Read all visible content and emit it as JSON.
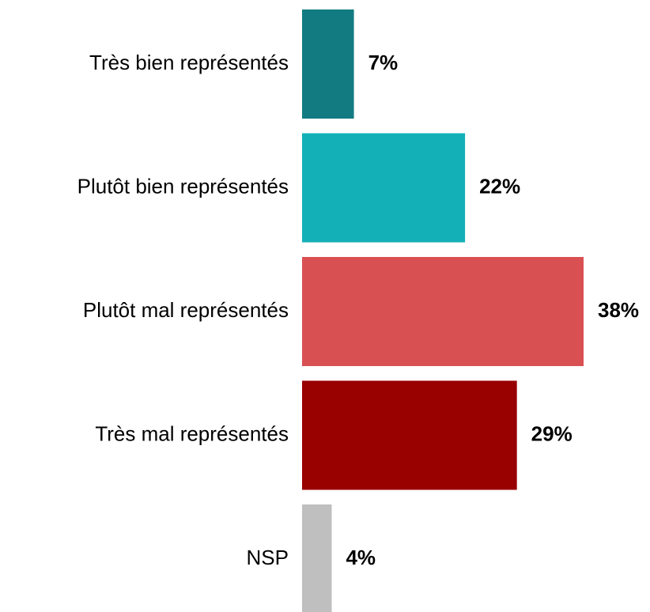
{
  "chart_data": {
    "type": "bar",
    "orientation": "horizontal",
    "categories": [
      "Très bien représentés",
      "Plutôt bien représentés",
      "Plutôt mal représentés",
      "Très mal représentés",
      "NSP"
    ],
    "values": [
      7,
      22,
      38,
      29,
      4
    ],
    "value_labels": [
      "7%",
      "22%",
      "38%",
      "29%",
      "4%"
    ],
    "colors": [
      "#127b82",
      "#14b0b8",
      "#d95052",
      "#990000",
      "#bfbfbf"
    ]
  }
}
